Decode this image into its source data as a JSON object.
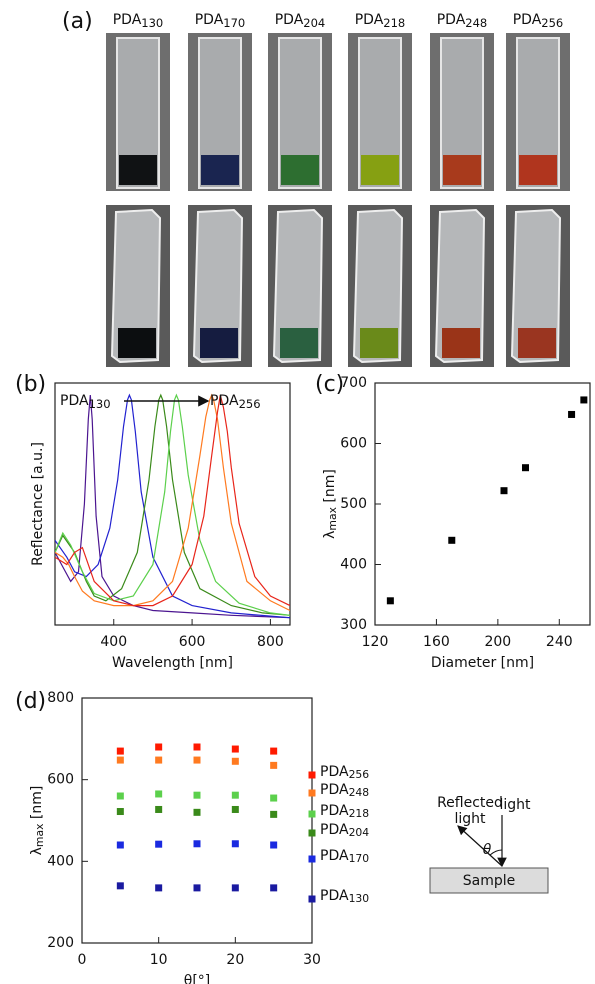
{
  "panel_a": {
    "label": "(a)",
    "samples": [
      {
        "text": "PDA",
        "sub": "130"
      },
      {
        "text": "PDA",
        "sub": "170"
      },
      {
        "text": "PDA",
        "sub": "204"
      },
      {
        "text": "PDA",
        "sub": "218"
      },
      {
        "text": "PDA",
        "sub": "248"
      },
      {
        "text": "PDA",
        "sub": "256"
      }
    ]
  },
  "chart_data": [
    {
      "type": "line",
      "panel": "(b)",
      "xlabel": "Wavelength [nm]",
      "ylabel": "Reflectance [a.u.]",
      "annotation_start": {
        "text": "PDA",
        "sub": "130"
      },
      "annotation_end": {
        "text": "PDA",
        "sub": "256"
      },
      "xlim": [
        250,
        850
      ],
      "xticks": [
        400,
        600,
        800
      ],
      "ylim": [
        0,
        1
      ],
      "series": [
        {
          "color": "#4b1590",
          "x": [
            250,
            270,
            290,
            310,
            325,
            335,
            340,
            345,
            355,
            370,
            400,
            450,
            500,
            600,
            700,
            850
          ],
          "values": [
            0.3,
            0.24,
            0.18,
            0.22,
            0.5,
            0.85,
            0.95,
            0.85,
            0.45,
            0.2,
            0.12,
            0.08,
            0.06,
            0.05,
            0.04,
            0.03
          ]
        },
        {
          "color": "#2222d0",
          "x": [
            250,
            280,
            300,
            330,
            360,
            390,
            410,
            425,
            435,
            440,
            445,
            455,
            470,
            500,
            550,
            600,
            700,
            850
          ],
          "values": [
            0.35,
            0.28,
            0.22,
            0.2,
            0.25,
            0.4,
            0.6,
            0.82,
            0.93,
            0.95,
            0.93,
            0.8,
            0.55,
            0.28,
            0.12,
            0.08,
            0.05,
            0.03
          ]
        },
        {
          "color": "#3a8a1a",
          "x": [
            250,
            270,
            300,
            330,
            350,
            380,
            420,
            460,
            490,
            505,
            515,
            520,
            525,
            535,
            550,
            580,
            620,
            700,
            780,
            850
          ],
          "values": [
            0.3,
            0.37,
            0.3,
            0.18,
            0.12,
            0.1,
            0.15,
            0.3,
            0.6,
            0.82,
            0.93,
            0.95,
            0.93,
            0.82,
            0.6,
            0.3,
            0.15,
            0.08,
            0.05,
            0.04
          ]
        },
        {
          "color": "#5cd04c",
          "x": [
            250,
            270,
            290,
            320,
            350,
            400,
            450,
            500,
            530,
            545,
            555,
            560,
            565,
            575,
            590,
            620,
            660,
            720,
            800,
            850
          ],
          "values": [
            0.3,
            0.38,
            0.33,
            0.22,
            0.13,
            0.1,
            0.12,
            0.25,
            0.55,
            0.8,
            0.93,
            0.95,
            0.93,
            0.82,
            0.62,
            0.35,
            0.18,
            0.09,
            0.05,
            0.04
          ]
        },
        {
          "color": "#ff7a20",
          "x": [
            250,
            270,
            285,
            300,
            320,
            350,
            400,
            450,
            500,
            550,
            590,
            620,
            635,
            645,
            650,
            655,
            665,
            680,
            700,
            740,
            800,
            850
          ],
          "values": [
            0.3,
            0.28,
            0.25,
            0.2,
            0.14,
            0.1,
            0.08,
            0.08,
            0.1,
            0.18,
            0.4,
            0.7,
            0.86,
            0.93,
            0.95,
            0.93,
            0.85,
            0.65,
            0.42,
            0.18,
            0.1,
            0.06
          ]
        },
        {
          "color": "#e8251a",
          "x": [
            250,
            280,
            300,
            320,
            350,
            400,
            450,
            500,
            550,
            600,
            630,
            650,
            665,
            672,
            680,
            690,
            700,
            720,
            760,
            800,
            850
          ],
          "values": [
            0.28,
            0.25,
            0.3,
            0.32,
            0.18,
            0.1,
            0.08,
            0.08,
            0.12,
            0.25,
            0.45,
            0.7,
            0.88,
            0.95,
            0.9,
            0.8,
            0.65,
            0.42,
            0.2,
            0.12,
            0.08
          ]
        }
      ]
    },
    {
      "type": "scatter",
      "panel": "(c)",
      "xlabel": "Diameter [nm]",
      "ylabel": {
        "text": "λ",
        "sub": "max",
        "suffix": " [nm]"
      },
      "xlim": [
        120,
        260
      ],
      "xticks": [
        120,
        160,
        200,
        240
      ],
      "ylim": [
        300,
        700
      ],
      "yticks": [
        300,
        400,
        500,
        600,
        700
      ],
      "color": "#000000",
      "x": [
        130,
        170,
        204,
        218,
        248,
        256
      ],
      "values": [
        340,
        440,
        522,
        560,
        648,
        672
      ]
    },
    {
      "type": "scatter",
      "panel": "(d)",
      "xlabel": "θ[°]",
      "ylabel": {
        "text": "λ",
        "sub": "max",
        "suffix": " [nm]"
      },
      "xlim": [
        0,
        30
      ],
      "xticks": [
        0,
        10,
        20,
        30
      ],
      "ylim": [
        200,
        800
      ],
      "yticks": [
        200,
        400,
        600,
        800
      ],
      "x": [
        5,
        10,
        15,
        20,
        25
      ],
      "series": [
        {
          "name": {
            "text": "PDA",
            "sub": "256"
          },
          "color": "#ff1a00",
          "values": [
            670,
            680,
            680,
            675,
            670
          ]
        },
        {
          "name": {
            "text": "PDA",
            "sub": "248"
          },
          "color": "#ff7a20",
          "values": [
            648,
            648,
            648,
            645,
            635
          ]
        },
        {
          "name": {
            "text": "PDA",
            "sub": "218"
          },
          "color": "#5cd04c",
          "values": [
            560,
            565,
            562,
            562,
            555
          ]
        },
        {
          "name": {
            "text": "PDA",
            "sub": "204"
          },
          "color": "#3a8a1a",
          "values": [
            522,
            527,
            520,
            527,
            515
          ]
        },
        {
          "name": {
            "text": "PDA",
            "sub": "170"
          },
          "color": "#1a2ae0",
          "values": [
            440,
            442,
            443,
            443,
            440
          ]
        },
        {
          "name": {
            "text": "PDA",
            "sub": "130"
          },
          "color": "#1a1aa0",
          "values": [
            340,
            335,
            335,
            335,
            335
          ]
        }
      ]
    }
  ],
  "diagram": {
    "reflected": [
      "Reflected",
      "light"
    ],
    "incident": "light",
    "angle": "θ",
    "sample": "Sample"
  }
}
